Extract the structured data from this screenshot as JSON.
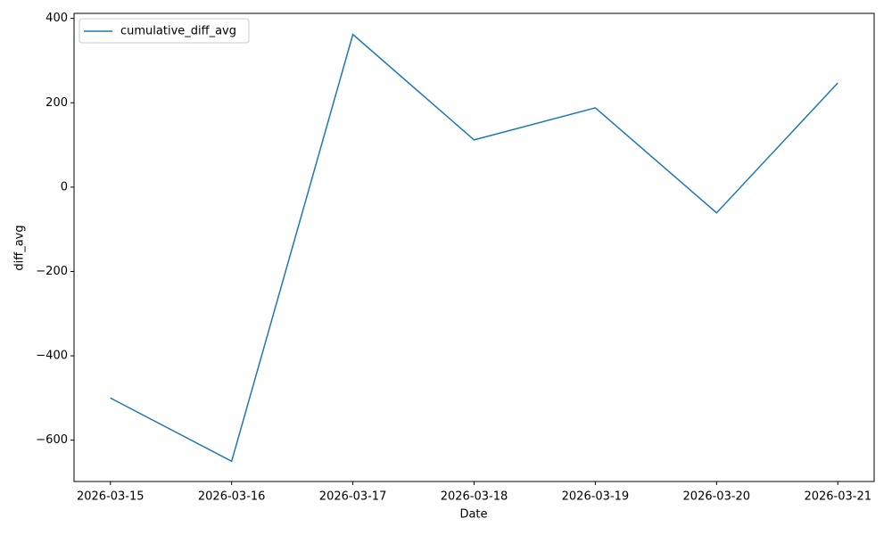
{
  "chart_data": {
    "type": "line",
    "categories": [
      "2026-03-15",
      "2026-03-16",
      "2026-03-17",
      "2026-03-18",
      "2026-03-19",
      "2026-03-20",
      "2026-03-21"
    ],
    "series": [
      {
        "name": "cumulative_diff_avg",
        "color": "#1f77b4",
        "values": [
          -500,
          -650,
          362,
          112,
          188,
          -61,
          247
        ]
      }
    ],
    "xlabel": "Date",
    "ylabel": "diff_avg",
    "ylim": [
      -698,
      412
    ],
    "yticks": [
      {
        "value": -600,
        "label": "−600"
      },
      {
        "value": -400,
        "label": "−400"
      },
      {
        "value": -200,
        "label": "−200"
      },
      0,
      200,
      400
    ],
    "grid": false,
    "legend": "upper-left"
  }
}
